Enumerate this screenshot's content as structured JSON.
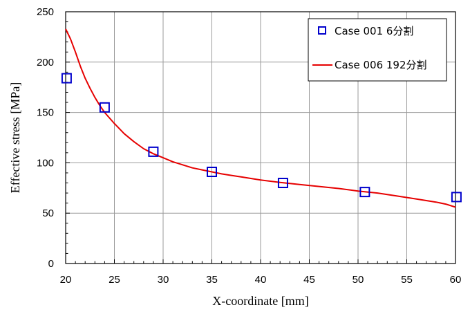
{
  "chart_data": {
    "type": "line",
    "xlabel": "X-coordinate  [mm]",
    "ylabel": "Effective stress  [MPa]",
    "xlim": [
      20,
      60
    ],
    "ylim": [
      0,
      250
    ],
    "xticks": [
      20,
      25,
      30,
      35,
      40,
      45,
      50,
      55,
      60
    ],
    "yticks": [
      0,
      50,
      100,
      150,
      200,
      250
    ],
    "grid": true,
    "legend_position": "top-right",
    "series": [
      {
        "name": "Case 001 6分割",
        "style": "markers",
        "marker": "square-open",
        "color": "#0000cc",
        "x": [
          20.1,
          24.0,
          29.0,
          35.0,
          42.3,
          50.7,
          60.1
        ],
        "y": [
          184,
          155,
          111,
          91,
          80,
          71,
          66
        ]
      },
      {
        "name": "Case 006 192分割",
        "style": "line",
        "color": "#e60000",
        "x": [
          20.0,
          20.5,
          21.0,
          21.5,
          22.0,
          22.5,
          23.0,
          23.5,
          24.0,
          25.0,
          26.0,
          27.0,
          28.0,
          29.0,
          30.0,
          31.0,
          32.0,
          33.0,
          34.0,
          35.0,
          36.0,
          37.0,
          38.0,
          40.0,
          42.0,
          44.0,
          46.0,
          48.0,
          50.0,
          52.0,
          54.0,
          56.0,
          58.0,
          59.0,
          60.0
        ],
        "y": [
          233,
          223,
          210,
          196,
          184,
          174,
          165,
          157,
          150,
          139,
          129,
          121,
          114,
          109,
          105,
          101,
          98,
          95,
          93,
          91,
          89,
          87.5,
          86,
          83,
          80.5,
          78.5,
          76.5,
          74.5,
          72,
          70,
          67,
          64,
          61,
          59,
          56
        ]
      }
    ]
  }
}
